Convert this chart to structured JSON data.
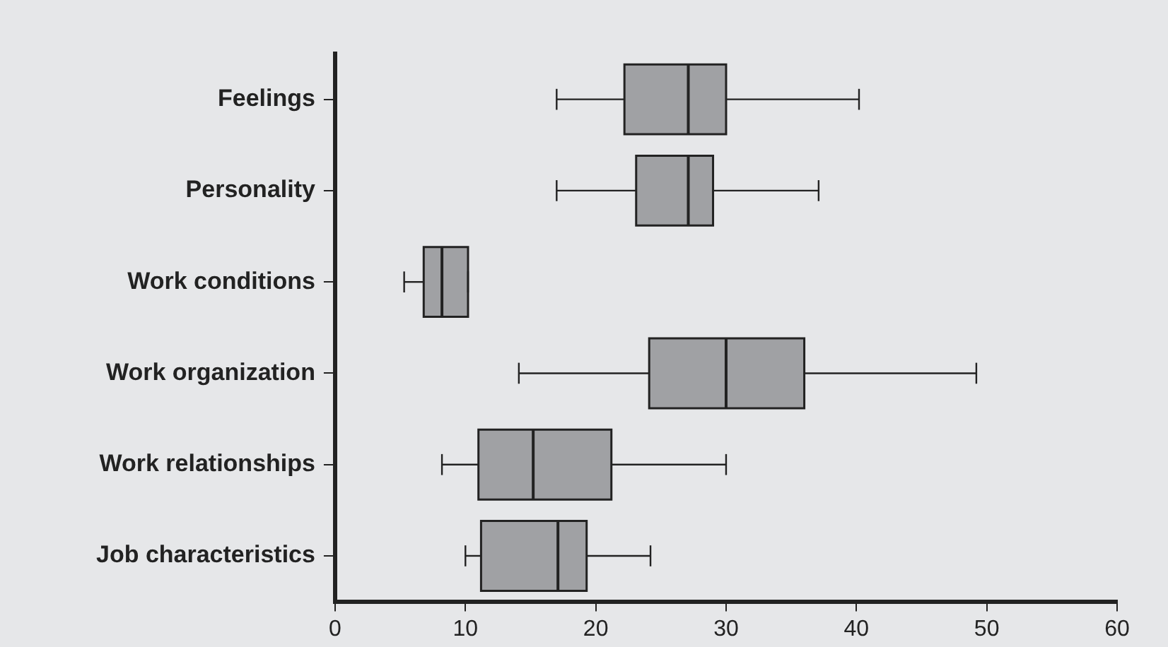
{
  "chart_data": {
    "type": "box",
    "orientation": "horizontal",
    "categories": [
      "Feelings",
      "Personality",
      "Work conditions",
      "Work organization",
      "Work relationships",
      "Job characteristics"
    ],
    "color": "#a0a1a4",
    "boxes": [
      {
        "low": 17,
        "q1": 22.2,
        "median": 27.1,
        "q3": 30,
        "high": 40.2
      },
      {
        "low": 17,
        "q1": 23.1,
        "median": 27.1,
        "q3": 29,
        "high": 37.1
      },
      {
        "low": 5.3,
        "q1": 6.8,
        "median": 8.2,
        "q3": 10.2,
        "high": 10.2
      },
      {
        "low": 14.1,
        "q1": 24.1,
        "median": 30,
        "q3": 36,
        "high": 49.2
      },
      {
        "low": 8.2,
        "q1": 11,
        "median": 15.2,
        "q3": 21.2,
        "high": 30
      },
      {
        "low": 10,
        "q1": 11.2,
        "median": 17.1,
        "q3": 19.3,
        "high": 24.2
      }
    ],
    "xlim": [
      0,
      60
    ],
    "xticks": [
      0,
      10,
      20,
      30,
      40,
      50,
      60
    ],
    "grid": false,
    "legend": false
  }
}
